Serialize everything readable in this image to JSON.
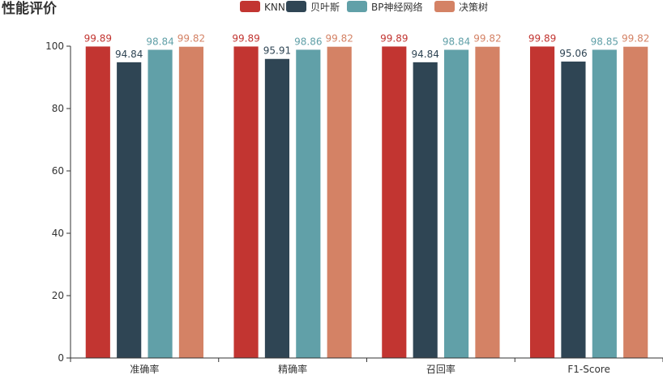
{
  "chart_data": {
    "type": "bar",
    "title": "性能评价",
    "categories": [
      "准确率",
      "精确率",
      "召回率",
      "F1-Score"
    ],
    "series": [
      {
        "name": "KNN",
        "color": "#c23531",
        "values": [
          99.89,
          99.89,
          99.89,
          99.89
        ]
      },
      {
        "name": "贝叶斯",
        "color": "#2f4554",
        "values": [
          94.84,
          95.91,
          94.84,
          95.06
        ]
      },
      {
        "name": "BP神经网络",
        "color": "#61a0a8",
        "values": [
          98.84,
          98.86,
          98.84,
          98.85
        ]
      },
      {
        "name": "决策树",
        "color": "#d48265",
        "values": [
          99.82,
          99.82,
          99.82,
          99.82
        ]
      }
    ],
    "yticks": [
      0,
      20,
      40,
      60,
      80,
      100
    ],
    "ylim": [
      0,
      100
    ],
    "xlabel": "",
    "ylabel": ""
  }
}
